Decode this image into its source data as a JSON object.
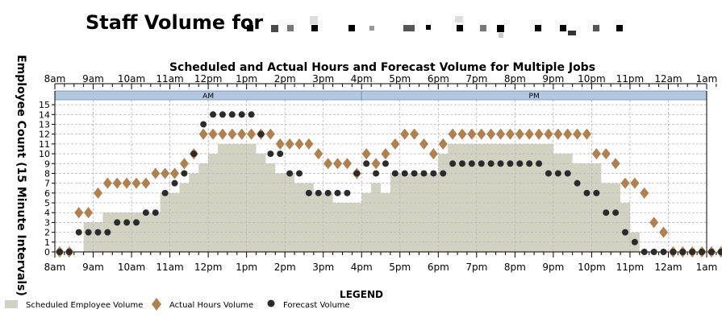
{
  "page": {
    "title": "Staff Volume for"
  },
  "chart_data": {
    "type": "area",
    "title": "Scheduled and Actual Hours and Forecast Volume for Multiple Jobs",
    "xlabel": "",
    "ylabel": "Employee Count (15 Minute Intervals)",
    "x_tick_labels": [
      "8am",
      "9am",
      "10am",
      "11am",
      "12pm",
      "1pm",
      "2pm",
      "3pm",
      "4pm",
      "5pm",
      "6pm",
      "7pm",
      "8pm",
      "9pm",
      "10pm",
      "11pm",
      "12am",
      "1am"
    ],
    "y_ticks": [
      0,
      1,
      2,
      3,
      4,
      5,
      6,
      7,
      8,
      9,
      10,
      11,
      12,
      13,
      14,
      15
    ],
    "ylim": [
      0,
      15.5
    ],
    "band_labels": [
      "AM",
      "PM"
    ],
    "grid": true,
    "legend_title": "LEGEND",
    "legend_placement": "bottom",
    "colors": {
      "scheduled": "#d2d2c2",
      "actual": "#b0804f",
      "forecast": "#2b2b2b",
      "band": "#b3c8df"
    },
    "series": [
      {
        "name": "Scheduled Employee Volume",
        "kind": "area",
        "values": [
          0,
          0,
          0,
          3,
          3,
          4,
          4,
          4,
          4,
          4,
          4,
          6,
          6,
          7,
          8,
          9,
          10,
          11,
          11,
          11,
          11,
          10,
          9,
          8,
          8,
          7,
          7,
          6,
          6,
          5,
          5,
          5,
          6,
          7,
          6,
          8,
          8,
          8,
          8,
          8,
          10,
          11,
          11,
          11,
          11,
          11,
          11,
          11,
          11,
          11,
          11,
          11,
          10,
          10,
          9,
          9,
          9,
          7,
          7,
          5,
          2,
          0,
          0,
          0,
          0,
          0,
          0,
          0,
          0,
          0
        ]
      },
      {
        "name": "Actual Hours Volume",
        "kind": "diamond",
        "values": [
          0,
          0,
          4,
          4,
          6,
          7,
          7,
          7,
          7,
          7,
          8,
          8,
          8,
          9,
          10,
          12,
          12,
          12,
          12,
          12,
          12,
          12,
          12,
          11,
          11,
          11,
          11,
          10,
          9,
          9,
          9,
          8,
          10,
          9,
          10,
          11,
          12,
          12,
          11,
          10,
          11,
          12,
          12,
          12,
          12,
          12,
          12,
          12,
          12,
          12,
          12,
          12,
          12,
          12,
          12,
          12,
          10,
          10,
          9,
          7,
          7,
          6,
          3,
          2,
          0,
          0,
          0,
          0,
          0,
          0
        ]
      },
      {
        "name": "Forecast Volume",
        "kind": "circle",
        "values": [
          0,
          0,
          2,
          2,
          2,
          2,
          3,
          3,
          3,
          4,
          4,
          6,
          7,
          8,
          10,
          13,
          14,
          14,
          14,
          14,
          14,
          12,
          10,
          10,
          8,
          8,
          6,
          6,
          6,
          6,
          6,
          8,
          9,
          8,
          9,
          8,
          8,
          8,
          8,
          8,
          8,
          9,
          9,
          9,
          9,
          9,
          9,
          9,
          9,
          9,
          9,
          8,
          8,
          8,
          7,
          6,
          6,
          4,
          4,
          2,
          1,
          0,
          0,
          0,
          0,
          0,
          0,
          0,
          0,
          0
        ]
      }
    ]
  }
}
